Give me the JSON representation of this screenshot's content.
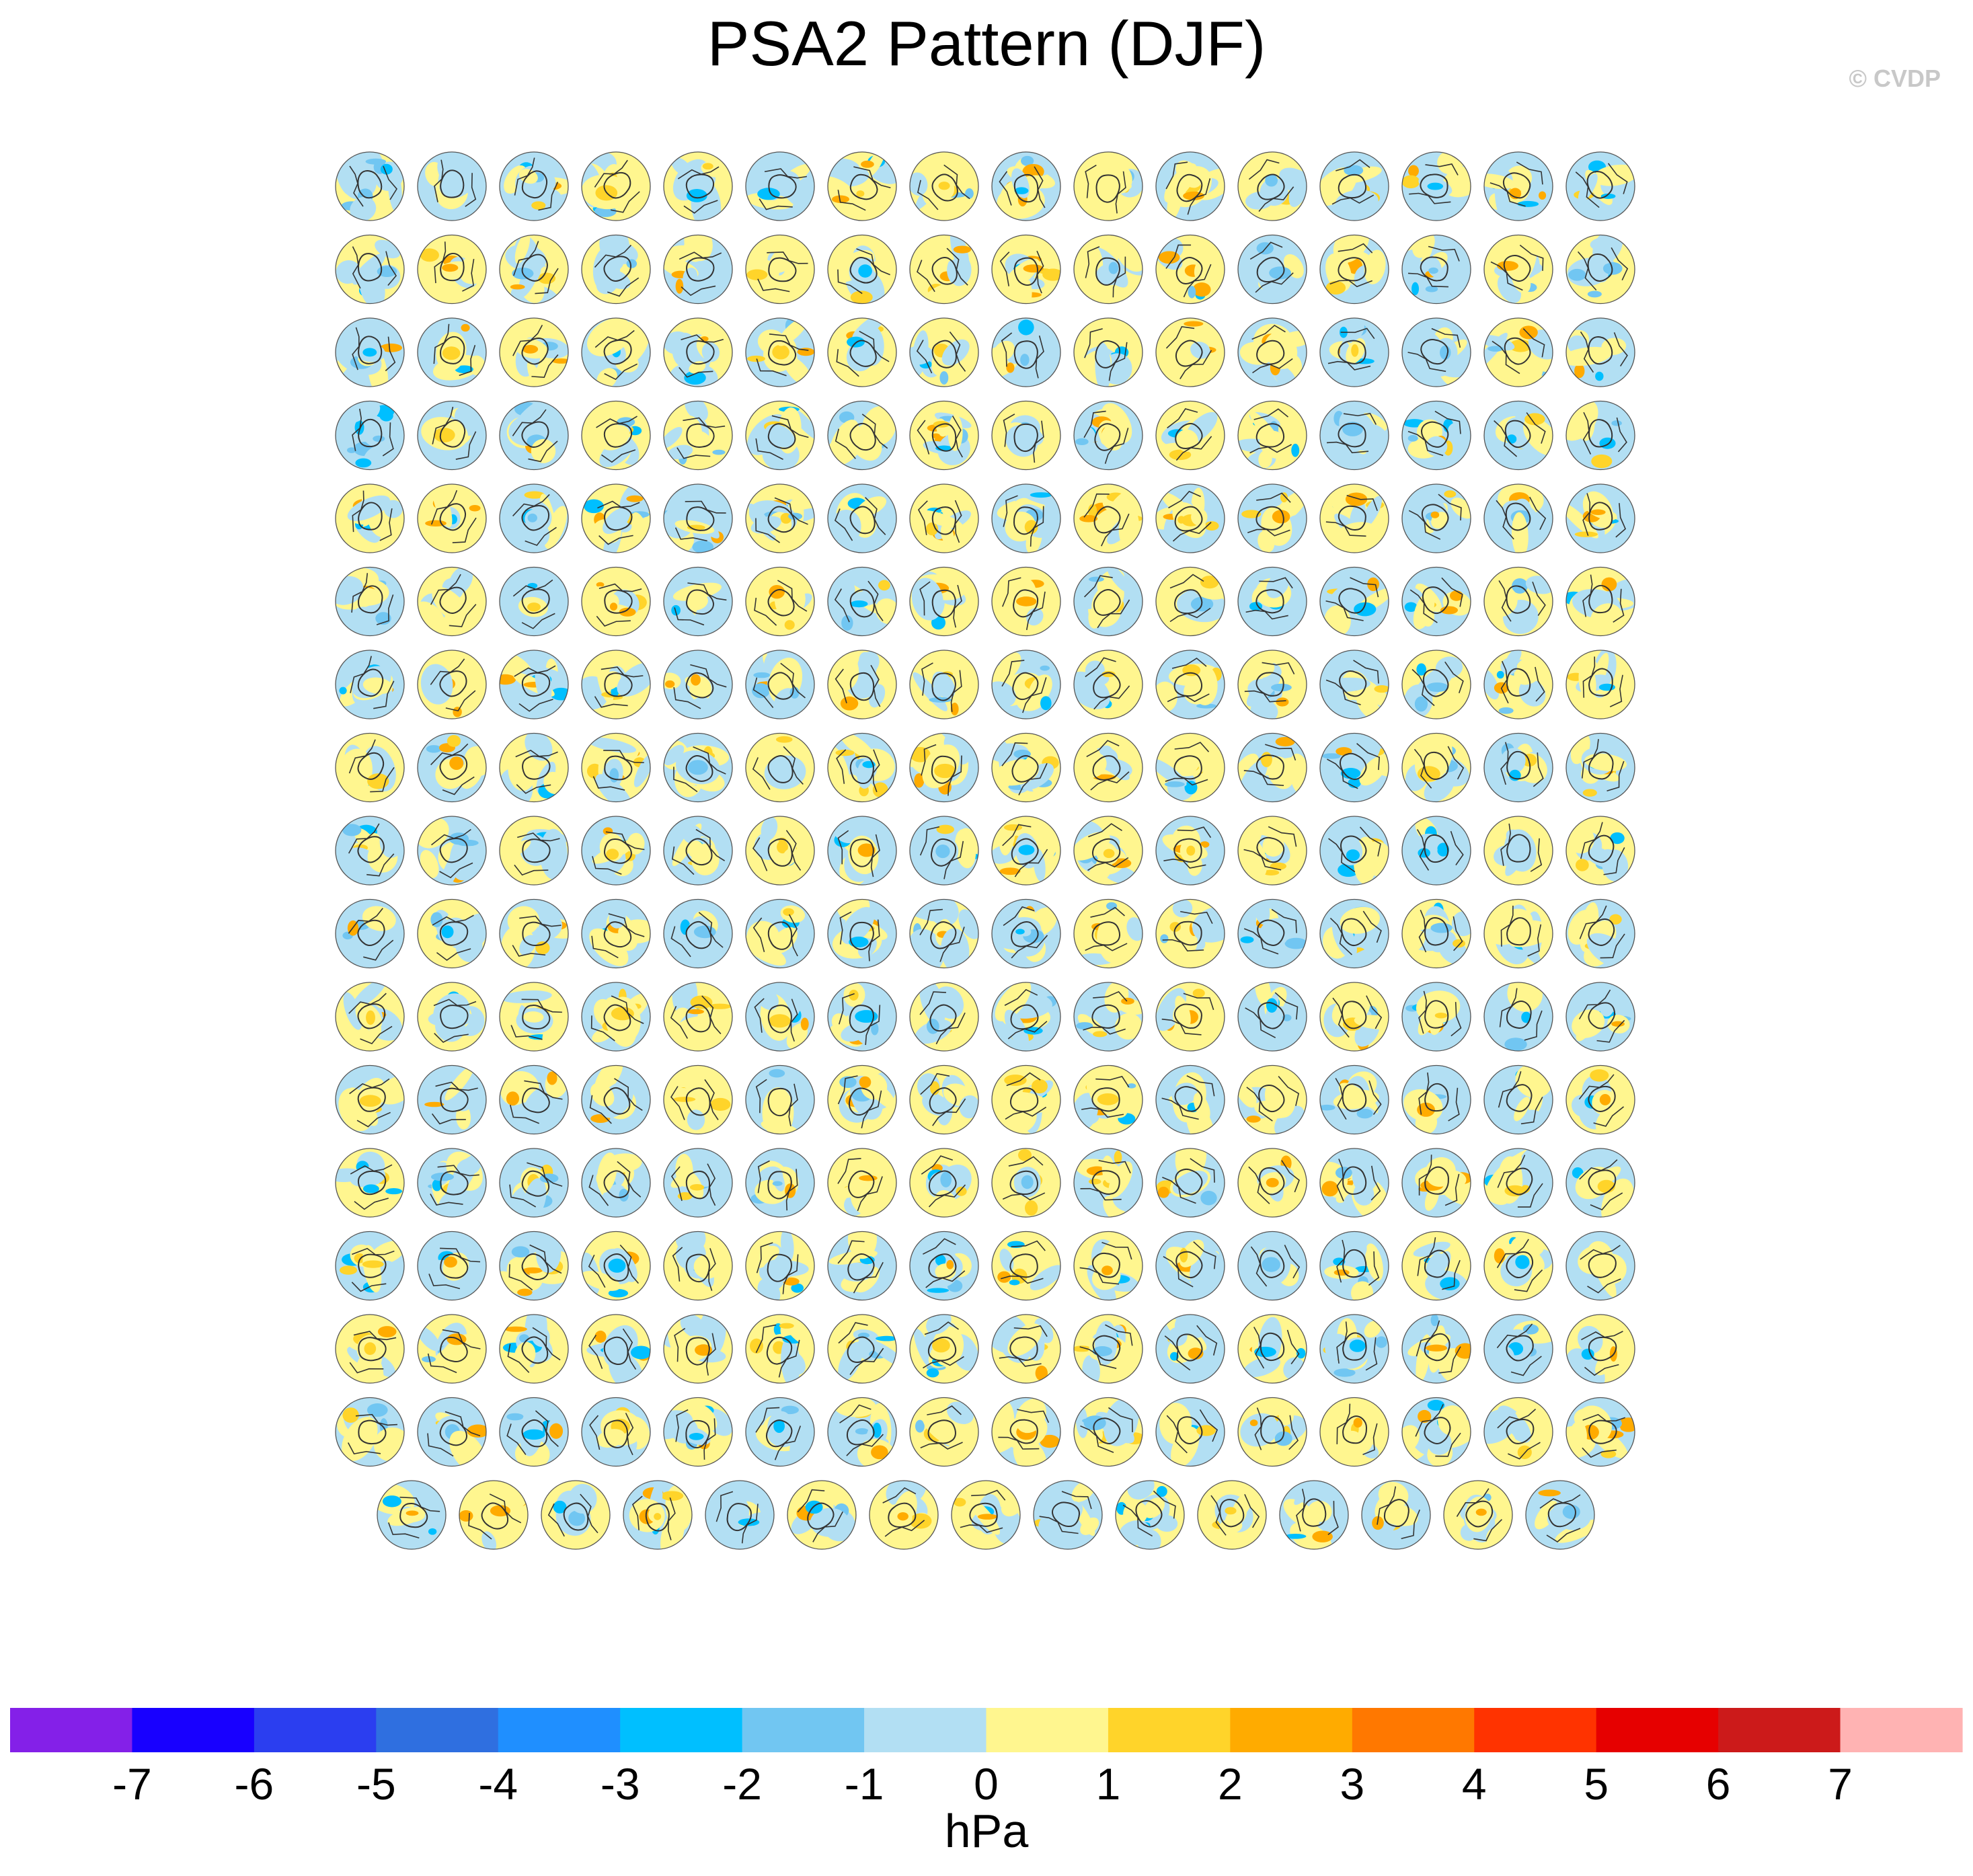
{
  "chart_data": {
    "type": "heatmap",
    "title": "PSA2 Pattern (DJF)",
    "description_units": "hPa",
    "watermark": "© CVDP",
    "panel_grid": {
      "rows": 17,
      "full_row_count": 16,
      "full_row_panels": 16,
      "last_row_panels": 15,
      "total_panels": 271
    },
    "colorbar": {
      "units": "hPa",
      "ticks": [
        -7,
        -6,
        -5,
        -4,
        -3,
        -2,
        -1,
        0,
        1,
        2,
        3,
        4,
        5,
        6,
        7
      ],
      "tick_labels": [
        "-7",
        "-6",
        "-5",
        "-4",
        "-3",
        "-2",
        "-1",
        "0",
        "1",
        "2",
        "3",
        "4",
        "5",
        "6",
        "7"
      ],
      "colors": [
        "#8420e8",
        "#1800ff",
        "#2b3ef0",
        "#2f6fe0",
        "#1f8fff",
        "#00bfff",
        "#71c6f2",
        "#b2dff3",
        "#fff68f",
        "#ffd42a",
        "#ffab00",
        "#ff7800",
        "#ff3300",
        "#e60000",
        "#cc1a1a",
        "#ffb3b3"
      ]
    }
  }
}
